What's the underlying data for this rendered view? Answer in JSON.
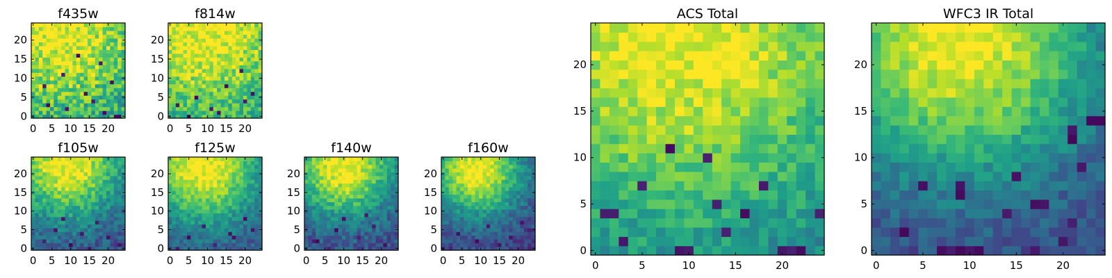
{
  "chart_data": [
    {
      "type": "heatmap",
      "title": "f435w",
      "grid": false,
      "colormap": "viridis",
      "size": [
        25,
        25
      ],
      "xlim": [
        0,
        24
      ],
      "ylim": [
        0,
        24
      ],
      "xticks": [
        0,
        5,
        10,
        15,
        20
      ],
      "yticks": [
        0,
        5,
        10,
        15,
        20
      ],
      "gradient": {
        "center": [
          7,
          24
        ],
        "spread": 18,
        "floor": 0.42,
        "noise": 0.38
      },
      "dark_cells": [
        [
          4,
          3
        ],
        [
          9,
          2
        ],
        [
          14,
          6
        ],
        [
          18,
          14
        ],
        [
          21,
          9
        ],
        [
          22,
          0
        ],
        [
          23,
          0
        ],
        [
          8,
          11
        ],
        [
          12,
          16
        ],
        [
          3,
          8
        ],
        [
          16,
          4
        ],
        [
          19,
          1
        ]
      ]
    },
    {
      "type": "heatmap",
      "title": "f814w",
      "grid": false,
      "colormap": "viridis",
      "size": [
        25,
        25
      ],
      "xlim": [
        0,
        24
      ],
      "ylim": [
        0,
        24
      ],
      "xticks": [
        0,
        5,
        10,
        15,
        20
      ],
      "yticks": [
        0,
        5,
        10,
        15,
        20
      ],
      "gradient": {
        "center": [
          9,
          24
        ],
        "spread": 18,
        "floor": 0.45,
        "noise": 0.32
      },
      "dark_cells": [
        [
          2,
          3
        ],
        [
          7,
          5
        ],
        [
          11,
          2
        ],
        [
          15,
          8
        ],
        [
          19,
          12
        ],
        [
          22,
          6
        ],
        [
          5,
          0
        ],
        [
          13,
          1
        ],
        [
          20,
          4
        ]
      ]
    },
    {
      "type": "heatmap",
      "title": "f105w",
      "grid": false,
      "colormap": "viridis",
      "size": [
        25,
        25
      ],
      "xlim": [
        0,
        24
      ],
      "ylim": [
        0,
        24
      ],
      "xticks": [
        0,
        5,
        10,
        15,
        20
      ],
      "yticks": [
        0,
        5,
        10,
        15,
        20
      ],
      "gradient": {
        "center": [
          9,
          23
        ],
        "spread": 11,
        "floor": 0.22,
        "noise": 0.25
      },
      "dark_cells": [
        [
          3,
          2
        ],
        [
          6,
          5
        ],
        [
          10,
          1
        ],
        [
          13,
          4
        ],
        [
          17,
          7
        ],
        [
          20,
          3
        ],
        [
          23,
          1
        ],
        [
          8,
          8
        ],
        [
          15,
          0
        ]
      ]
    },
    {
      "type": "heatmap",
      "title": "f125w",
      "grid": false,
      "colormap": "viridis",
      "size": [
        25,
        25
      ],
      "xlim": [
        0,
        24
      ],
      "ylim": [
        0,
        24
      ],
      "xticks": [
        0,
        5,
        10,
        15,
        20
      ],
      "yticks": [
        0,
        5,
        10,
        15,
        20
      ],
      "gradient": {
        "center": [
          9,
          22
        ],
        "spread": 11,
        "floor": 0.24,
        "noise": 0.22
      },
      "dark_cells": [
        [
          5,
          3
        ],
        [
          9,
          6
        ],
        [
          16,
          4
        ],
        [
          17,
          3
        ],
        [
          20,
          8
        ],
        [
          2,
          0
        ],
        [
          12,
          1
        ],
        [
          22,
          5
        ]
      ]
    },
    {
      "type": "heatmap",
      "title": "f140w",
      "grid": false,
      "colormap": "viridis",
      "size": [
        25,
        25
      ],
      "xlim": [
        0,
        24
      ],
      "ylim": [
        0,
        24
      ],
      "xticks": [
        0,
        5,
        10,
        15,
        20
      ],
      "yticks": [
        0,
        5,
        10,
        15,
        20
      ],
      "gradient": {
        "center": [
          10,
          22
        ],
        "spread": 10,
        "floor": 0.2,
        "noise": 0.24
      },
      "dark_cells": [
        [
          2,
          2
        ],
        [
          3,
          2
        ],
        [
          8,
          5
        ],
        [
          10,
          8
        ],
        [
          14,
          3
        ],
        [
          18,
          6
        ],
        [
          21,
          1
        ],
        [
          6,
          0
        ],
        [
          16,
          9
        ]
      ]
    },
    {
      "type": "heatmap",
      "title": "f160w",
      "grid": false,
      "colormap": "viridis",
      "size": [
        25,
        25
      ],
      "xlim": [
        0,
        24
      ],
      "ylim": [
        0,
        24
      ],
      "xticks": [
        0,
        5,
        10,
        15,
        20
      ],
      "yticks": [
        0,
        5,
        10,
        15,
        20
      ],
      "gradient": {
        "center": [
          9,
          21
        ],
        "spread": 9,
        "floor": 0.18,
        "noise": 0.22
      },
      "dark_cells": [
        [
          4,
          4
        ],
        [
          9,
          2
        ],
        [
          12,
          6
        ],
        [
          18,
          3
        ],
        [
          21,
          7
        ],
        [
          2,
          0
        ],
        [
          15,
          1
        ],
        [
          23,
          5
        ]
      ]
    },
    {
      "type": "heatmap",
      "title": "ACS Total",
      "grid": false,
      "colormap": "viridis",
      "size": [
        25,
        25
      ],
      "xlim": [
        0,
        24
      ],
      "ylim": [
        0,
        24
      ],
      "xticks": [
        0,
        5,
        10,
        15,
        20
      ],
      "yticks": [
        0,
        5,
        10,
        15,
        20
      ],
      "gradient": {
        "center": [
          9,
          24
        ],
        "spread": 15,
        "floor": 0.38,
        "noise": 0.24
      },
      "dark_cells": [
        [
          8,
          11
        ],
        [
          5,
          7
        ],
        [
          13,
          5
        ],
        [
          18,
          7
        ],
        [
          2,
          4
        ],
        [
          1,
          4
        ],
        [
          16,
          4
        ],
        [
          20,
          0
        ],
        [
          21,
          0
        ],
        [
          22,
          0
        ],
        [
          24,
          4
        ],
        [
          10,
          0
        ],
        [
          9,
          0
        ],
        [
          3,
          1
        ],
        [
          12,
          10
        ],
        [
          14,
          2
        ]
      ]
    },
    {
      "type": "heatmap",
      "title": "WFC3 IR Total",
      "grid": false,
      "colormap": "viridis",
      "size": [
        25,
        25
      ],
      "xlim": [
        0,
        24
      ],
      "ylim": [
        0,
        24
      ],
      "xticks": [
        0,
        5,
        10,
        15,
        20
      ],
      "yticks": [
        0,
        5,
        10,
        15,
        20
      ],
      "gradient": {
        "center": [
          9,
          23
        ],
        "spread": 11,
        "floor": 0.18,
        "noise": 0.2
      },
      "dark_cells": [
        [
          7,
          0
        ],
        [
          8,
          0
        ],
        [
          9,
          0
        ],
        [
          10,
          0
        ],
        [
          11,
          0
        ],
        [
          9,
          6
        ],
        [
          9,
          7
        ],
        [
          18,
          5
        ],
        [
          17,
          5
        ],
        [
          21,
          3
        ],
        [
          24,
          14
        ],
        [
          23,
          14
        ],
        [
          21,
          13
        ],
        [
          21,
          12
        ],
        [
          22,
          9
        ],
        [
          20,
          1
        ],
        [
          17,
          0
        ],
        [
          14,
          4
        ],
        [
          5,
          7
        ],
        [
          3,
          2
        ],
        [
          15,
          8
        ]
      ]
    }
  ]
}
